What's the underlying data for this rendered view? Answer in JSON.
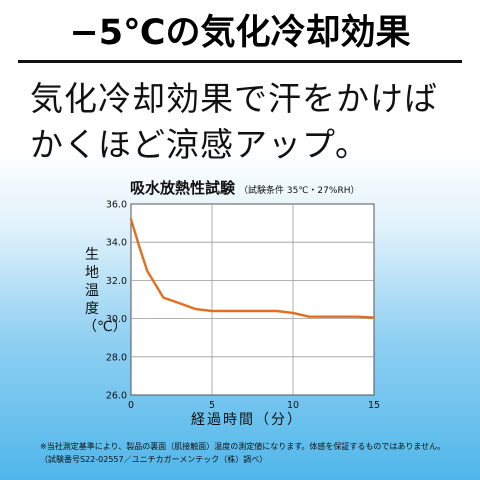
{
  "headline": "−5℃の気化冷却効果",
  "subtitle_lines": [
    "気化冷却効果で汗をかけば",
    "かくほど涼感アップ。"
  ],
  "chart_data": {
    "type": "line",
    "title": "吸水放熱性試験",
    "title_note": "（試験条件 35℃・27%RH）",
    "xlabel": "経過時間（分）",
    "ylabel": "生地温度（℃）",
    "xlim": [
      0,
      15
    ],
    "ylim": [
      26.0,
      36.0
    ],
    "x_ticks": [
      "0",
      "5",
      "10",
      "15"
    ],
    "y_ticks": [
      "26.0",
      "28.0",
      "30.0",
      "32.0",
      "34.0",
      "36.0"
    ],
    "grid": true,
    "line_color": "#e0701f",
    "series": [
      {
        "x": [
          0,
          0.5,
          1,
          1.5,
          2,
          3,
          4,
          5,
          6,
          7,
          8,
          9,
          10,
          11,
          12,
          13,
          14,
          15
        ],
        "values": [
          35.2,
          33.8,
          32.5,
          31.8,
          31.1,
          30.8,
          30.5,
          30.4,
          30.4,
          30.4,
          30.4,
          30.4,
          30.3,
          30.1,
          30.1,
          30.1,
          30.1,
          30.05
        ]
      }
    ]
  },
  "footnote_lines": [
    "※当社測定基準により、製品の裏面（肌接触面）温度の測定値になります。体感を保証するものではありません。",
    "（試験番号S22-02557／ユニチカガーメンテック（株）調べ）"
  ]
}
